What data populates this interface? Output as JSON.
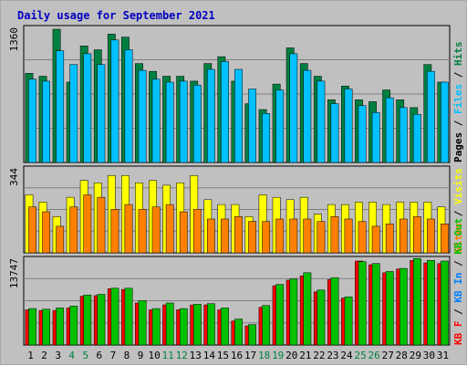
{
  "chart_data": {
    "type": "bar",
    "title": "Daily usage for September 2021",
    "categories": [
      "1",
      "2",
      "3",
      "4",
      "5",
      "6",
      "7",
      "8",
      "9",
      "10",
      "11",
      "12",
      "13",
      "14",
      "15",
      "16",
      "17",
      "18",
      "19",
      "20",
      "21",
      "22",
      "23",
      "24",
      "25",
      "26",
      "27",
      "28",
      "29",
      "30",
      "31"
    ],
    "weekend_days": [
      "4",
      "5",
      "11",
      "12",
      "18",
      "19",
      "25",
      "26"
    ],
    "panels": [
      {
        "name": "hits-files-pages",
        "ymax_label": "1360",
        "ymax": 1360,
        "series": [
          {
            "name": "Hits",
            "color": "#008040",
            "values": [
              910,
              880,
              1360,
              820,
              1190,
              1150,
              1310,
              1280,
              1010,
              930,
              880,
              880,
              830,
              1010,
              1080,
              830,
              600,
              540,
              800,
              1170,
              1010,
              880,
              640,
              780,
              640,
              620,
              740,
              640,
              560,
              1000,
              820
            ]
          },
          {
            "name": "Files",
            "color": "#00c0ff",
            "values": [
              850,
              830,
              1140,
              1000,
              1110,
              1000,
              1250,
              1150,
              940,
              850,
              820,
              830,
              790,
              950,
              1030,
              950,
              750,
              500,
              740,
              1110,
              940,
              830,
              600,
              750,
              580,
              510,
              660,
              560,
              490,
              930,
              820
            ]
          }
        ],
        "legend_labels": [
          "Pages",
          "/",
          "Files",
          "/",
          "Hits"
        ]
      },
      {
        "name": "visits-sites",
        "ymax_label": "344",
        "ymax": 344,
        "series": [
          {
            "name": "Visits",
            "color": "#ffff00",
            "values": [
              240,
              210,
              150,
              230,
              300,
              290,
              320,
              320,
              290,
              300,
              280,
              290,
              320,
              220,
              200,
              200,
              150,
              240,
              230,
              220,
              230,
              160,
              200,
              200,
              210,
              210,
              200,
              210,
              210,
              210,
              190
            ]
          },
          {
            "name": "Sites",
            "color": "#ff8000",
            "values": [
              190,
              170,
              110,
              190,
              240,
              230,
              180,
              200,
              180,
              190,
              200,
              170,
              180,
              140,
              140,
              150,
              130,
              130,
              140,
              140,
              140,
              130,
              150,
              140,
              130,
              110,
              120,
              140,
              150,
              140,
              120
            ]
          }
        ],
        "legend_labels": [
          "Sites",
          "/",
          "Visits"
        ]
      },
      {
        "name": "kbin-kbout-kbf",
        "ymax_label": "13747",
        "ymax": 13747,
        "series": [
          {
            "name": "KB F",
            "color": "#ff0000",
            "values": [
              5700,
              5600,
              5600,
              6000,
              7900,
              8000,
              9100,
              9000,
              6800,
              5700,
              6500,
              5700,
              6500,
              6500,
              5700,
              3900,
              3100,
              6100,
              9600,
              10500,
              11200,
              8600,
              10600,
              7600,
              13600,
              13000,
              11700,
              12300,
              13700,
              13300,
              13200
            ]
          },
          {
            "name": "KB In",
            "color": "#0080ff",
            "values": [
              0,
              0,
              0,
              0,
              0,
              0,
              0,
              0,
              0,
              0,
              0,
              0,
              0,
              0,
              0,
              0,
              0,
              0,
              0,
              0,
              0,
              0,
              0,
              0,
              0,
              0,
              0,
              0,
              0,
              0,
              0
            ]
          },
          {
            "name": "KB Out",
            "color": "#00c000",
            "values": [
              5900,
              5800,
              6000,
              6300,
              8100,
              8200,
              9200,
              9200,
              7200,
              5900,
              6800,
              5900,
              6600,
              6700,
              6000,
              4200,
              3300,
              6400,
              9800,
              10700,
              11700,
              8900,
              10900,
              7800,
              13500,
              13200,
              11900,
              12400,
              14000,
              13700,
              13600
            ]
          }
        ],
        "legend_labels": [
          "KB F",
          "/",
          "KB In",
          "/",
          "KB Out"
        ]
      }
    ],
    "grid": true,
    "legend_placement": "right (vertical)"
  }
}
